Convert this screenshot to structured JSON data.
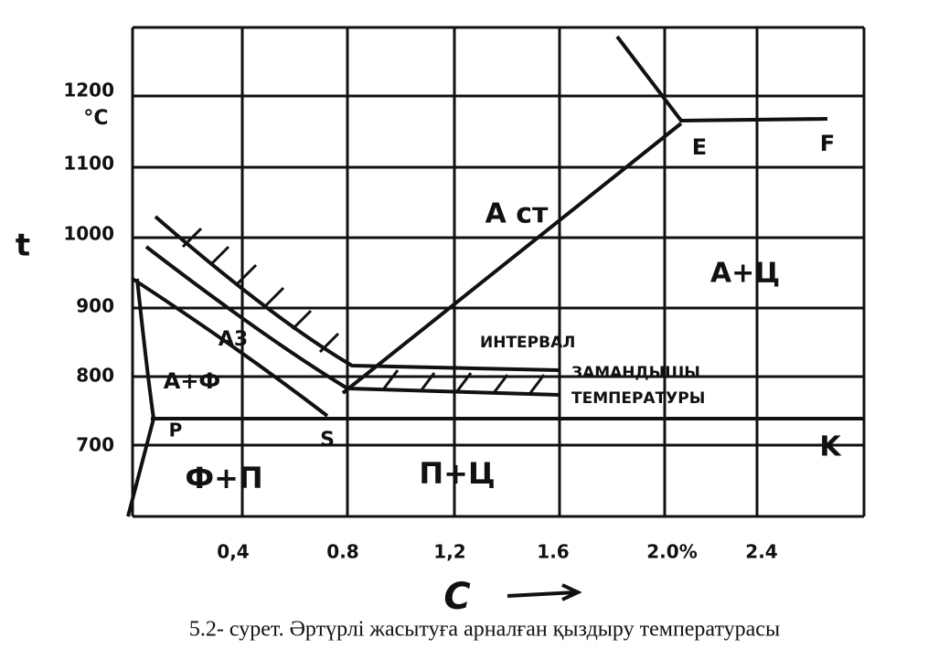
{
  "y_axis": {
    "label": "t",
    "unit": "°C",
    "ticks": [
      "1200",
      "1100",
      "1000",
      "900",
      "800",
      "700"
    ]
  },
  "x_axis": {
    "label": "C",
    "ticks": [
      "0,4",
      "0.8",
      "1,2",
      "1.6",
      "2.0%",
      "2.4"
    ]
  },
  "regions": [
    "A ст",
    "A+Ц",
    "Ф+П",
    "П+Ц",
    "A+Ф",
    "A3"
  ],
  "points": [
    "E",
    "F",
    "P",
    "S",
    "K"
  ],
  "annotation": [
    "ИНТЕРВАЛ",
    "ЗАМАНДЫШЫ",
    "ТЕМПЕРАТУРЫ"
  ],
  "caption": "5.2- сурет. Әртүрлі жасытуға арналған қыздыру температурасы"
}
